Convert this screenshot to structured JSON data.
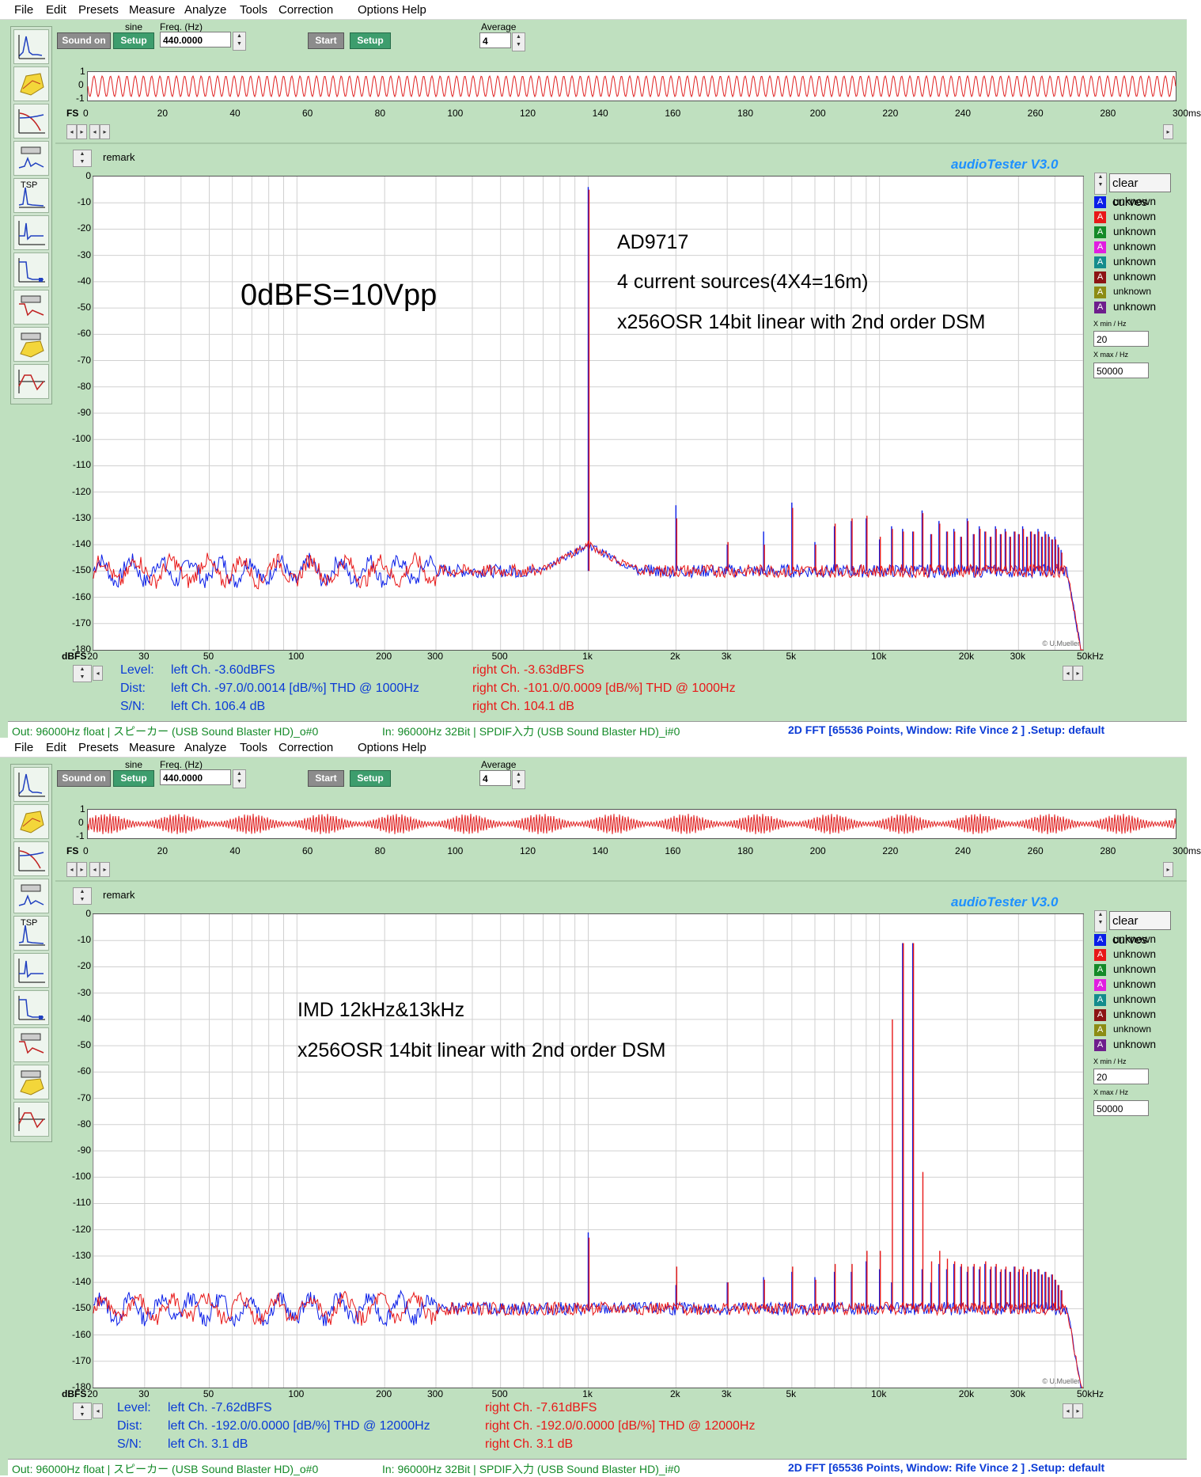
{
  "menu": [
    "File",
    "Edit",
    "Presets",
    "Measure",
    "Analyze",
    "Tools",
    "Correction",
    "Options",
    "Help"
  ],
  "generator": {
    "sound_on_label": "Sound on",
    "setup_label": "Setup",
    "waveform": "sine",
    "freq_label": "Freq. (Hz)",
    "freq_value": "440.0000",
    "start_label": "Start",
    "setup2_label": "Setup",
    "average_label": "Average",
    "average_value": "4"
  },
  "toolbar_icons": [
    "spectrum-icon",
    "waterfall-icon",
    "bode-icon",
    "distortion-icon",
    "tsp-icon",
    "impulse-icon",
    "step-icon",
    "thd-sweep-icon",
    "3d-icon",
    "time-icon"
  ],
  "tsp_label": "TSP",
  "osc": {
    "fs_label": "FS",
    "y_ticks": [
      "1",
      "0",
      "-1"
    ],
    "x_ticks": [
      "0",
      "20",
      "40",
      "60",
      "80",
      "100",
      "120",
      "140",
      "160",
      "180",
      "200",
      "220",
      "240",
      "260",
      "280",
      "300ms"
    ]
  },
  "remark_label": "remark",
  "app_title": "audioTester  V3.0",
  "clear_curves_label": "clear curves",
  "legend": [
    {
      "letter": "A",
      "color": "#0a1ee8",
      "label": "unknown"
    },
    {
      "letter": "A",
      "color": "#e81818",
      "label": "unknown"
    },
    {
      "letter": "A",
      "color": "#148a28",
      "label": "unknown"
    },
    {
      "letter": "A",
      "color": "#e01ee0",
      "label": "unknown"
    },
    {
      "letter": "A",
      "color": "#148c8c",
      "label": "unknown"
    },
    {
      "letter": "A",
      "color": "#8c1414",
      "label": "unknown"
    },
    {
      "letter": "A",
      "color": "#8c8c14",
      "label": "unknown"
    },
    {
      "letter": "A",
      "color": "#6e1e8c",
      "label": "unknown"
    }
  ],
  "x_range": {
    "min_label": "X min / Hz",
    "min_value": "20",
    "max_label": "X max / Hz",
    "max_value": "50000"
  },
  "y_ticks": [
    "0",
    "-10",
    "-20",
    "-30",
    "-40",
    "-50",
    "-60",
    "-70",
    "-80",
    "-90",
    "-100",
    "-110",
    "-120",
    "-130",
    "-140",
    "-150",
    "-160",
    "-170",
    "-180"
  ],
  "y_unit": "dBFS",
  "x_ticks": [
    "20",
    "30",
    "50",
    "100",
    "200",
    "300",
    "500",
    "1k",
    "2k",
    "3k",
    "5k",
    "10k",
    "20k",
    "30k",
    "50kHz"
  ],
  "copyright": "© U.Mueller",
  "panel1": {
    "annotations": [
      "AD9717",
      "4 current sources(4X4=16m)",
      "x256OSR   14bit linear with 2nd order DSM",
      "0dBFS=10Vpp"
    ],
    "readings": {
      "level_label": "Level:",
      "dist_label": "Dist:",
      "sn_label": "S/N:",
      "left_level": "left Ch. -3.60dBFS",
      "left_dist": "left Ch. -97.0/0.0014 [dB/%] THD @ 1000Hz",
      "left_sn": "left Ch. 106.4 dB",
      "right_level": "right Ch. -3.63dBFS",
      "right_dist": "right Ch. -101.0/0.0009 [dB/%] THD @ 1000Hz",
      "right_sn": "right Ch. 104.1 dB"
    },
    "status": {
      "out": "Out: 96000Hz float  | スピーカー (USB Sound Blaster HD)_o#0",
      "in": "In: 96000Hz 32Bit  | SPDIF入力 (USB Sound Blaster HD)_i#0",
      "fft": "2D FFT [65536 Points, Window: Rife Vince 2 ]  .Setup:  default"
    }
  },
  "panel2": {
    "annotations": [
      "IMD 12kHz&13kHz",
      "x256OSR  14bit linear with 2nd order DSM"
    ],
    "readings": {
      "level_label": "Level:",
      "dist_label": "Dist:",
      "sn_label": "S/N:",
      "left_level": "left Ch. -7.62dBFS",
      "left_dist": "left Ch. -192.0/0.0000 [dB/%] THD @ 12000Hz",
      "left_sn": "left Ch. 3.1 dB",
      "right_level": "right Ch. -7.61dBFS",
      "right_dist": "right Ch. -192.0/0.0000 [dB/%] THD @ 12000Hz",
      "right_sn": "right Ch. 3.1 dB"
    },
    "status": {
      "out": "Out: 96000Hz float  | スピーカー (USB Sound Blaster HD)_o#0",
      "in": "In: 96000Hz 32Bit  | SPDIF入力 (USB Sound Blaster HD)_i#0",
      "fft": "2D FFT [65536 Points, Window: Rife Vince 2 ]  .Setup:  default"
    }
  },
  "chart_data": [
    {
      "type": "line",
      "title": "",
      "xlabel": "",
      "ylabel": "dBFS",
      "x_scale": "log",
      "xlim": [
        20,
        50000
      ],
      "ylim": [
        -180,
        0
      ],
      "noise_floor_db": -150,
      "series": [
        {
          "color": "#0a1ee8",
          "peaks": [
            [
              1000,
              -4
            ],
            [
              2000,
              -125
            ],
            [
              3000,
              -140
            ],
            [
              4000,
              -135
            ],
            [
              5000,
              -124
            ],
            [
              6000,
              -139
            ],
            [
              7000,
              -133
            ],
            [
              8000,
              -131
            ],
            [
              9000,
              -130
            ],
            [
              10000,
              -138
            ],
            [
              11000,
              -133
            ],
            [
              12000,
              -134
            ],
            [
              13000,
              -135
            ],
            [
              14000,
              -127
            ],
            [
              15000,
              -136
            ],
            [
              16000,
              -131
            ],
            [
              17000,
              -135
            ],
            [
              18000,
              -134
            ],
            [
              19000,
              -137
            ],
            [
              20000,
              -130
            ],
            [
              21000,
              -136
            ],
            [
              22000,
              -133
            ],
            [
              23000,
              -135
            ],
            [
              24000,
              -137
            ],
            [
              25000,
              -133
            ],
            [
              26000,
              -136
            ],
            [
              27000,
              -134
            ],
            [
              28000,
              -137
            ],
            [
              29000,
              -135
            ],
            [
              30000,
              -136
            ],
            [
              31000,
              -133
            ],
            [
              32000,
              -137
            ],
            [
              33000,
              -135
            ],
            [
              34000,
              -136
            ],
            [
              35000,
              -134
            ],
            [
              36000,
              -137
            ],
            [
              37000,
              -135
            ],
            [
              38000,
              -136
            ],
            [
              39000,
              -138
            ],
            [
              40000,
              -137
            ],
            [
              41000,
              -140
            ],
            [
              42000,
              -142
            ]
          ]
        },
        {
          "color": "#e81818",
          "peaks": [
            [
              1000,
              -5
            ],
            [
              2000,
              -130
            ],
            [
              3000,
              -139
            ],
            [
              4000,
              -140
            ],
            [
              5000,
              -126
            ],
            [
              6000,
              -140
            ],
            [
              7000,
              -132
            ],
            [
              8000,
              -130
            ],
            [
              9000,
              -129
            ],
            [
              10000,
              -137
            ],
            [
              11000,
              -134
            ],
            [
              12000,
              -135
            ],
            [
              13000,
              -135
            ],
            [
              14000,
              -128
            ],
            [
              15000,
              -136
            ],
            [
              16000,
              -132
            ],
            [
              17000,
              -135
            ],
            [
              18000,
              -135
            ],
            [
              19000,
              -137
            ],
            [
              20000,
              -131
            ],
            [
              21000,
              -136
            ],
            [
              22000,
              -134
            ],
            [
              23000,
              -135
            ],
            [
              24000,
              -137
            ],
            [
              25000,
              -134
            ],
            [
              26000,
              -136
            ],
            [
              27000,
              -135
            ],
            [
              28000,
              -137
            ],
            [
              29000,
              -135
            ],
            [
              30000,
              -136
            ],
            [
              31000,
              -134
            ],
            [
              32000,
              -137
            ],
            [
              33000,
              -135
            ],
            [
              34000,
              -136
            ],
            [
              35000,
              -135
            ],
            [
              36000,
              -137
            ],
            [
              37000,
              -136
            ],
            [
              38000,
              -137
            ],
            [
              39000,
              -138
            ],
            [
              40000,
              -138
            ],
            [
              41000,
              -141
            ],
            [
              42000,
              -143
            ]
          ]
        }
      ]
    },
    {
      "type": "line",
      "title": "",
      "xlabel": "",
      "ylabel": "dBFS",
      "x_scale": "log",
      "xlim": [
        20,
        50000
      ],
      "ylim": [
        -180,
        0
      ],
      "noise_floor_db": -150,
      "series": [
        {
          "color": "#0a1ee8",
          "peaks": [
            [
              1000,
              -121
            ],
            [
              2000,
              -141
            ],
            [
              3000,
              -140
            ],
            [
              4000,
              -138
            ],
            [
              5000,
              -136
            ],
            [
              6000,
              -138
            ],
            [
              7000,
              -136
            ],
            [
              8000,
              -136
            ],
            [
              9000,
              -132
            ],
            [
              10000,
              -135
            ],
            [
              11000,
              -140
            ],
            [
              12000,
              -11
            ],
            [
              13000,
              -11
            ],
            [
              14000,
              -135
            ],
            [
              15000,
              -140
            ],
            [
              16000,
              -133
            ],
            [
              17000,
              -135
            ],
            [
              18000,
              -133
            ],
            [
              19000,
              -134
            ],
            [
              20000,
              -136
            ],
            [
              21000,
              -134
            ],
            [
              22000,
              -135
            ],
            [
              23000,
              -133
            ],
            [
              24000,
              -135
            ],
            [
              25000,
              -134
            ],
            [
              26000,
              -136
            ],
            [
              27000,
              -135
            ],
            [
              28000,
              -136
            ],
            [
              29000,
              -134
            ],
            [
              30000,
              -136
            ],
            [
              31000,
              -135
            ],
            [
              32000,
              -137
            ],
            [
              33000,
              -135
            ],
            [
              34000,
              -136
            ],
            [
              35000,
              -135
            ],
            [
              36000,
              -137
            ],
            [
              37000,
              -136
            ],
            [
              38000,
              -138
            ],
            [
              39000,
              -137
            ],
            [
              40000,
              -139
            ],
            [
              41000,
              -141
            ],
            [
              42000,
              -143
            ]
          ]
        },
        {
          "color": "#e81818",
          "peaks": [
            [
              1000,
              -123
            ],
            [
              2000,
              -134
            ],
            [
              3000,
              -140
            ],
            [
              4000,
              -139
            ],
            [
              5000,
              -134
            ],
            [
              6000,
              -139
            ],
            [
              7000,
              -133
            ],
            [
              8000,
              -133
            ],
            [
              9000,
              -128
            ],
            [
              10000,
              -128
            ],
            [
              11000,
              -40
            ],
            [
              12000,
              -11
            ],
            [
              13000,
              -11
            ],
            [
              14000,
              -98
            ],
            [
              15000,
              -132
            ],
            [
              16000,
              -128
            ],
            [
              17000,
              -131
            ],
            [
              18000,
              -132
            ],
            [
              19000,
              -133
            ],
            [
              20000,
              -134
            ],
            [
              21000,
              -133
            ],
            [
              22000,
              -134
            ],
            [
              23000,
              -132
            ],
            [
              24000,
              -134
            ],
            [
              25000,
              -133
            ],
            [
              26000,
              -135
            ],
            [
              27000,
              -134
            ],
            [
              28000,
              -136
            ],
            [
              29000,
              -134
            ],
            [
              30000,
              -135
            ],
            [
              31000,
              -134
            ],
            [
              32000,
              -136
            ],
            [
              33000,
              -135
            ],
            [
              34000,
              -136
            ],
            [
              35000,
              -135
            ],
            [
              36000,
              -137
            ],
            [
              37000,
              -136
            ],
            [
              38000,
              -138
            ],
            [
              39000,
              -137
            ],
            [
              40000,
              -139
            ],
            [
              41000,
              -141
            ],
            [
              42000,
              -143
            ]
          ]
        }
      ]
    }
  ]
}
